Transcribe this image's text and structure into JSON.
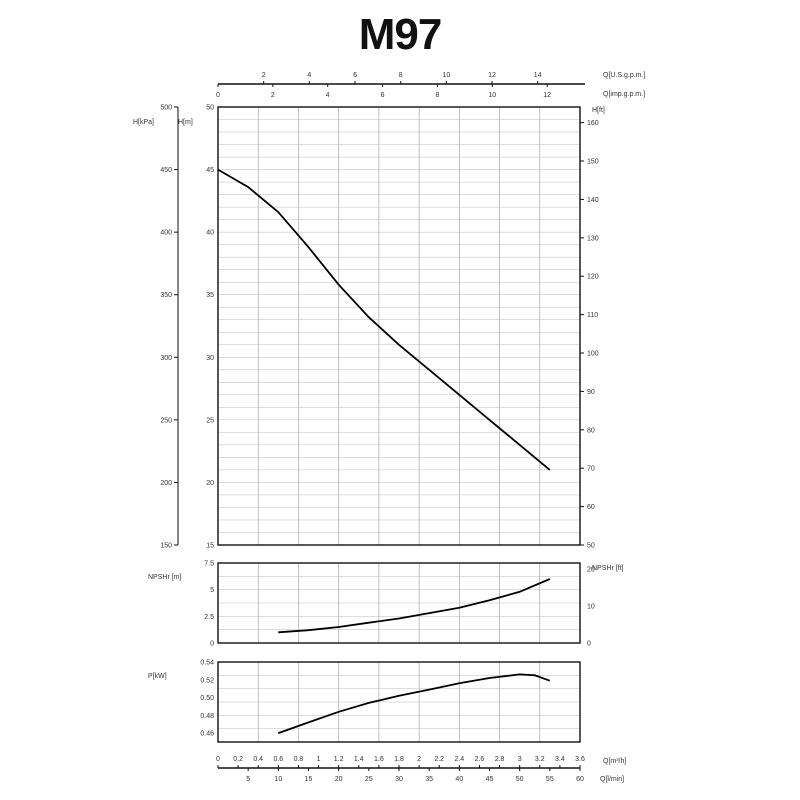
{
  "title": "M97",
  "chart_data": [
    {
      "type": "line",
      "name": "head",
      "ylabel": "H[m]",
      "ylabel2": "H[kPa]",
      "ylabel3": "H[ft]",
      "ylim": [
        15,
        50
      ],
      "yticks": [
        15,
        20,
        25,
        30,
        35,
        40,
        45,
        50
      ],
      "kpa_ticks": [
        150,
        200,
        250,
        300,
        350,
        400,
        450,
        500
      ],
      "ft_ticks": [
        50,
        60,
        70,
        80,
        90,
        100,
        110,
        120,
        130,
        140,
        150,
        160
      ],
      "series": [
        {
          "name": "H",
          "x": [
            0,
            0.3,
            0.6,
            0.9,
            1.2,
            1.5,
            1.8,
            2.1,
            2.4,
            2.7,
            3.0,
            3.3
          ],
          "y": [
            45,
            43.6,
            41.6,
            38.8,
            35.8,
            33.2,
            31,
            29,
            27,
            25,
            23,
            21
          ]
        }
      ]
    },
    {
      "type": "line",
      "name": "npsh",
      "ylabel": "NPSHr [m]",
      "ylabel2": "NPSHr [ft]",
      "ylim": [
        0,
        7.5
      ],
      "yticks": [
        "0",
        "2.5",
        "5",
        "7.5"
      ],
      "ft_ticks": [
        "0",
        "10",
        "20"
      ],
      "series": [
        {
          "name": "NPSHr",
          "x": [
            0.6,
            0.9,
            1.2,
            1.5,
            1.8,
            2.1,
            2.4,
            2.7,
            3.0,
            3.3
          ],
          "y": [
            1.0,
            1.2,
            1.5,
            1.9,
            2.3,
            2.8,
            3.3,
            4.0,
            4.8,
            6.0
          ]
        }
      ]
    },
    {
      "type": "line",
      "name": "power",
      "ylabel": "P[kW]",
      "ylim": [
        0.45,
        0.54
      ],
      "yticks": [
        "0.46",
        "0.48",
        "0.50",
        "0.52",
        "0.54"
      ],
      "series": [
        {
          "name": "P",
          "x": [
            0.6,
            0.9,
            1.2,
            1.5,
            1.8,
            2.1,
            2.4,
            2.7,
            3.0,
            3.15,
            3.3
          ],
          "y": [
            0.46,
            0.472,
            0.484,
            0.494,
            0.502,
            0.509,
            0.516,
            0.522,
            0.526,
            0.525,
            0.519
          ]
        }
      ]
    }
  ],
  "axes": {
    "q_m3h_label": "Q[m³/h]",
    "q_m3h_ticks": [
      "0",
      "0.2",
      "0.4",
      "0.6",
      "0.8",
      "1",
      "1.2",
      "1.4",
      "1.6",
      "1.8",
      "2",
      "2.2",
      "2.4",
      "2.6",
      "2.8",
      "3",
      "3.2",
      "3.4",
      "3.6"
    ],
    "q_lmin_label": "Q[l/min]",
    "q_lmin_ticks": [
      "5",
      "10",
      "15",
      "20",
      "25",
      "30",
      "35",
      "40",
      "45",
      "50",
      "55",
      "60"
    ],
    "q_usgpm_label": "Q[U.S.g.p.m.]",
    "q_usgpm_ticks": [
      "2",
      "4",
      "6",
      "8",
      "10",
      "12",
      "14"
    ],
    "q_impgpm_label": "Q[imp.g.p.m.]",
    "q_impgpm_ticks": [
      "0",
      "2",
      "4",
      "6",
      "8",
      "10",
      "12"
    ]
  }
}
